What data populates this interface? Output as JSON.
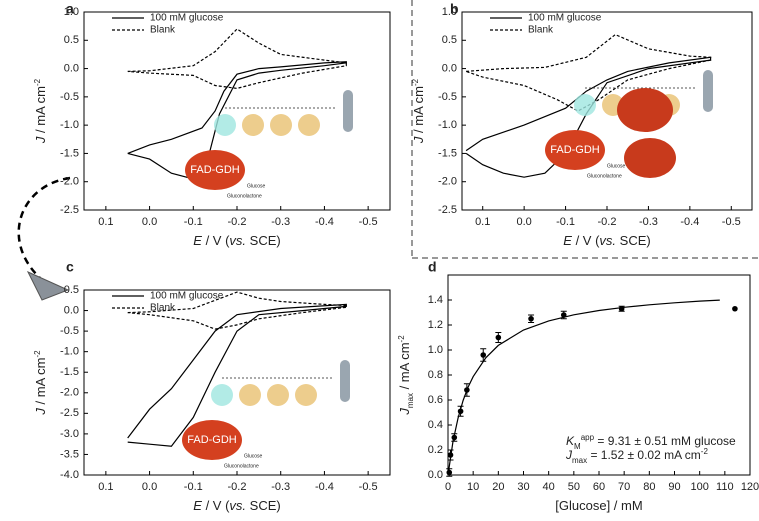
{
  "chart_data": [
    {
      "type": "line",
      "label": "a",
      "xlim": [
        0.15,
        -0.55
      ],
      "ylim": [
        -2.5,
        1.0
      ],
      "xticks": [
        0.1,
        {
          "value": 0,
          "label": "0.0"
        },
        -0.1,
        -0.2,
        -0.3,
        -0.4,
        -0.5
      ],
      "yticks": [
        {
          "value": 1,
          "label": "1.0"
        },
        0.5,
        {
          "value": 0,
          "label": "0.0"
        },
        -0.5,
        {
          "value": -1,
          "label": "-1.0"
        },
        -1.5,
        {
          "value": -2,
          "label": "-2.0"
        },
        -2.5
      ],
      "x_label": [
        {
          "text": "E",
          "style": "italic"
        },
        {
          "text": " / V ("
        },
        {
          "text": "vs.",
          "style": "italic"
        },
        {
          "text": " SCE)"
        }
      ],
      "y_label": [
        {
          "text": "J",
          "style": "italic"
        },
        {
          "text": " / mA cm"
        },
        {
          "text": "-2",
          "style": "sup"
        }
      ],
      "legend": "upper left",
      "series": [
        {
          "name": "100 mM glucose",
          "color": "#000000",
          "dash": false,
          "x": [
            0.05,
            0.0,
            -0.05,
            -0.1,
            -0.13,
            -0.16,
            -0.2,
            -0.25,
            -0.3,
            -0.4,
            -0.45,
            -0.45,
            -0.4,
            -0.3,
            -0.25,
            -0.2,
            -0.17,
            -0.15,
            -0.12,
            -0.05,
            0.0,
            0.05
          ],
          "values": [
            -1.5,
            -1.6,
            -1.85,
            -1.95,
            -1.7,
            -0.8,
            -0.2,
            -0.08,
            -0.03,
            0.05,
            0.1,
            0.12,
            0.1,
            0.03,
            0.0,
            -0.1,
            -0.4,
            -0.75,
            -1.05,
            -1.25,
            -1.35,
            -1.5
          ]
        },
        {
          "name": "Blank",
          "color": "#000000",
          "dash": true,
          "x": [
            0.05,
            0.0,
            -0.1,
            -0.15,
            -0.2,
            -0.25,
            -0.3,
            -0.4,
            -0.45,
            -0.45,
            -0.35,
            -0.25,
            -0.2,
            -0.15,
            -0.1,
            0.0,
            0.05
          ],
          "values": [
            -0.05,
            -0.04,
            0.05,
            0.3,
            0.7,
            0.45,
            0.25,
            0.15,
            0.1,
            0.05,
            -0.08,
            -0.25,
            -0.35,
            -0.3,
            -0.12,
            -0.08,
            -0.05
          ]
        }
      ],
      "inset_labels": [
        "FAD-GDH",
        "Glucose",
        "Gluconolactone"
      ]
    },
    {
      "type": "line",
      "label": "b",
      "xlim": [
        0.15,
        -0.55
      ],
      "ylim": [
        -2.5,
        1.0
      ],
      "xticks": [
        0.1,
        {
          "value": 0,
          "label": "0.0"
        },
        -0.1,
        -0.2,
        -0.3,
        -0.4,
        -0.5
      ],
      "yticks": [
        {
          "value": 1,
          "label": "1.0"
        },
        0.5,
        {
          "value": 0,
          "label": "0.0"
        },
        -0.5,
        {
          "value": -1,
          "label": "-1.0"
        },
        -1.5,
        {
          "value": -2,
          "label": "-2.0"
        },
        -2.5
      ],
      "x_label": [
        {
          "text": "E",
          "style": "italic"
        },
        {
          "text": " / V ("
        },
        {
          "text": "vs.",
          "style": "italic"
        },
        {
          "text": " SCE)"
        }
      ],
      "y_label": [
        {
          "text": "J",
          "style": "italic"
        },
        {
          "text": " / mA cm"
        },
        {
          "text": "-2",
          "style": "sup"
        }
      ],
      "legend": "upper left",
      "series": [
        {
          "name": "100 mM glucose",
          "color": "#000000",
          "dash": false,
          "x": [
            0.14,
            0.1,
            0.05,
            0.0,
            -0.05,
            -0.1,
            -0.15,
            -0.2,
            -0.3,
            -0.45,
            -0.45,
            -0.35,
            -0.25,
            -0.2,
            -0.15,
            -0.1,
            0.0,
            0.1,
            0.14
          ],
          "values": [
            -1.5,
            -1.7,
            -1.85,
            -1.92,
            -1.85,
            -1.5,
            -0.8,
            -0.25,
            0.0,
            0.15,
            0.2,
            0.1,
            -0.05,
            -0.2,
            -0.4,
            -0.7,
            -1.0,
            -1.25,
            -1.45
          ]
        },
        {
          "name": "Blank",
          "color": "#000000",
          "dash": true,
          "x": [
            0.14,
            0.05,
            -0.05,
            -0.15,
            -0.22,
            -0.3,
            -0.4,
            -0.45,
            -0.45,
            -0.35,
            -0.25,
            -0.18,
            -0.13,
            -0.08,
            0.0,
            0.1,
            0.14
          ],
          "values": [
            -0.05,
            0.0,
            0.02,
            0.2,
            0.6,
            0.35,
            0.22,
            0.2,
            0.15,
            0.0,
            -0.2,
            -0.55,
            -0.75,
            -0.55,
            -0.3,
            -0.15,
            -0.05
          ]
        }
      ],
      "inset_labels": [
        "FAD-GDH",
        "Glucose",
        "Gluconolactone"
      ]
    },
    {
      "type": "line",
      "label": "c",
      "xlim": [
        0.15,
        -0.55
      ],
      "ylim": [
        -4.0,
        0.5
      ],
      "xticks": [
        0.1,
        {
          "value": 0,
          "label": "0.0"
        },
        -0.1,
        -0.2,
        -0.3,
        -0.4,
        -0.5
      ],
      "yticks": [
        0.5,
        {
          "value": 0,
          "label": "0.0"
        },
        -0.5,
        {
          "value": -1,
          "label": "-1.0"
        },
        -1.5,
        {
          "value": -2,
          "label": "-2.0"
        },
        -2.5,
        {
          "value": -3,
          "label": "-3.0"
        },
        -3.5,
        {
          "value": -4,
          "label": "-4.0"
        }
      ],
      "x_label": [
        {
          "text": "E",
          "style": "italic"
        },
        {
          "text": " / V ("
        },
        {
          "text": "vs.",
          "style": "italic"
        },
        {
          "text": " SCE)"
        }
      ],
      "y_label": [
        {
          "text": "J",
          "style": "italic"
        },
        {
          "text": " / mA cm"
        },
        {
          "text": "-2",
          "style": "sup"
        }
      ],
      "legend": "upper left",
      "series": [
        {
          "name": "100 mM glucose",
          "color": "#000000",
          "dash": false,
          "x": [
            0.05,
            0.0,
            -0.05,
            -0.1,
            -0.15,
            -0.2,
            -0.25,
            -0.35,
            -0.45,
            -0.45,
            -0.3,
            -0.2,
            -0.15,
            -0.1,
            -0.05,
            0.0,
            0.05
          ],
          "values": [
            -3.2,
            -3.25,
            -3.3,
            -2.6,
            -1.5,
            -0.5,
            -0.1,
            0.0,
            0.1,
            0.15,
            0.05,
            -0.1,
            -0.5,
            -1.2,
            -1.9,
            -2.4,
            -3.1
          ]
        },
        {
          "name": "Blank",
          "color": "#000000",
          "dash": true,
          "x": [
            0.05,
            0.0,
            -0.1,
            -0.15,
            -0.2,
            -0.25,
            -0.3,
            -0.4,
            -0.45,
            -0.45,
            -0.35,
            -0.25,
            -0.2,
            -0.15,
            -0.1,
            0.0,
            0.05
          ],
          "values": [
            -0.05,
            -0.03,
            0.05,
            0.25,
            0.45,
            0.3,
            0.22,
            0.15,
            0.12,
            0.08,
            -0.05,
            -0.2,
            -0.35,
            -0.45,
            -0.25,
            -0.1,
            -0.05
          ]
        }
      ],
      "inset_labels": [
        "FAD-GDH",
        "Glucose",
        "Gluconolactone"
      ]
    },
    {
      "type": "scatter",
      "label": "d",
      "xlim": [
        0,
        120
      ],
      "ylim": [
        0,
        1.6
      ],
      "xticks": [
        0,
        10,
        20,
        30,
        40,
        50,
        60,
        70,
        80,
        90,
        100,
        110,
        120
      ],
      "yticks": [
        {
          "value": 0,
          "label": "0.0"
        },
        0.2,
        0.4,
        0.6,
        0.8,
        {
          "value": 1,
          "label": "1.0"
        },
        1.2,
        1.4
      ],
      "x_label": [
        {
          "text": "[Glucose] / mM"
        }
      ],
      "y_label": [
        {
          "text": "J",
          "style": "italic"
        },
        {
          "text": "max",
          "style": "sub"
        },
        {
          "text": " / mA cm"
        },
        {
          "text": "-2",
          "style": "sup"
        }
      ],
      "color": "#000000",
      "x": [
        0.5,
        1,
        2.5,
        5,
        7.5,
        14,
        20,
        33,
        46,
        69,
        114
      ],
      "values": [
        0.02,
        0.16,
        0.3,
        0.51,
        0.68,
        0.96,
        1.1,
        1.25,
        1.28,
        1.33,
        1.33
      ],
      "errors": [
        0.03,
        0.04,
        0.03,
        0.04,
        0.05,
        0.05,
        0.04,
        0.03,
        0.03,
        0.02,
        null
      ],
      "fit": {
        "x": [
          0,
          2,
          4,
          6,
          8,
          10,
          15,
          20,
          30,
          40,
          50,
          60,
          70,
          80,
          90,
          100,
          108
        ],
        "values": [
          0,
          0.269,
          0.457,
          0.596,
          0.703,
          0.787,
          0.938,
          1.037,
          1.16,
          1.233,
          1.282,
          1.316,
          1.342,
          1.362,
          1.378,
          1.391,
          1.399
        ]
      },
      "annotations": [
        [
          {
            "text": "K",
            "style": "italic"
          },
          {
            "text": "M",
            "style": "sub"
          },
          {
            "text": "app",
            "style": "sup"
          },
          {
            "text": " = 9.31 ± 0.51 mM glucose"
          }
        ],
        [
          {
            "text": "J",
            "style": "italic"
          },
          {
            "text": "max",
            "style": "sub"
          },
          {
            "text": " = 1.52 ± 0.02 mA cm"
          },
          {
            "text": "-2",
            "style": "sup"
          }
        ]
      ]
    }
  ]
}
